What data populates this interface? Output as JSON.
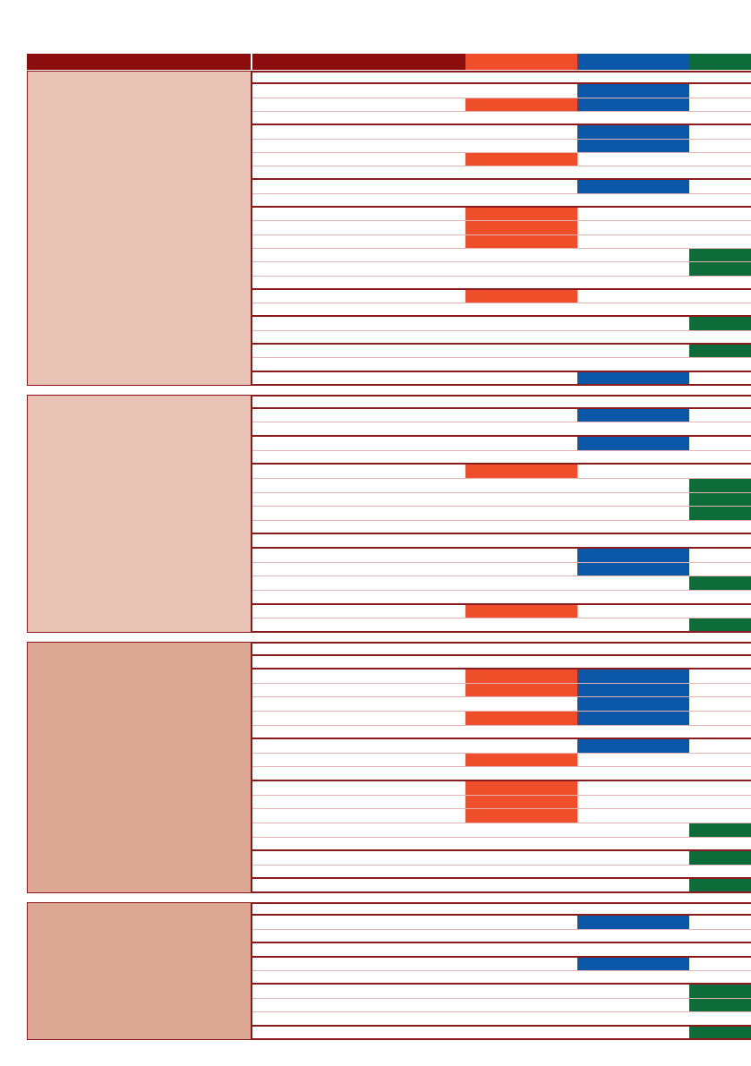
{
  "colors": {
    "dark_red": "#8b0d0d",
    "orange": "#ee4f2a",
    "blue": "#0b57a8",
    "green": "#0e6b3a",
    "group_light": "#e8c3b5",
    "group_dark": "#dca893",
    "rule": "#8b1a1a"
  },
  "header_cells": [
    {
      "name": "header-label-col",
      "color": "dark_red"
    },
    {
      "name": "header-desc-col",
      "color": "dark_red"
    },
    {
      "name": "header-orange-col",
      "color": "orange"
    },
    {
      "name": "header-blue-col",
      "color": "blue"
    },
    {
      "name": "header-green-col",
      "color": "green"
    }
  ],
  "groups": [
    {
      "shade": "group_light",
      "rows": [
        {
          "marks": []
        },
        {
          "marks": [
            "blue"
          ]
        },
        {
          "marks": [
            "orange",
            "blue"
          ]
        },
        {
          "marks": []
        },
        {
          "marks": [
            "blue"
          ]
        },
        {
          "marks": [
            "blue"
          ]
        },
        {
          "marks": [
            "orange"
          ]
        },
        {
          "marks": []
        },
        {
          "marks": [
            "blue"
          ]
        },
        {
          "marks": []
        },
        {
          "marks": [
            "orange"
          ]
        },
        {
          "marks": [
            "orange"
          ]
        },
        {
          "marks": [
            "orange"
          ]
        },
        {
          "marks": [
            "green"
          ]
        },
        {
          "marks": [
            "green"
          ]
        },
        {
          "marks": []
        },
        {
          "marks": [
            "orange"
          ]
        },
        {
          "marks": []
        },
        {
          "marks": [
            "green"
          ]
        },
        {
          "marks": []
        },
        {
          "marks": [
            "green"
          ]
        },
        {
          "marks": []
        },
        {
          "marks": [
            "blue"
          ]
        }
      ]
    },
    {
      "shade": "group_light",
      "rows": [
        {
          "marks": []
        },
        {
          "marks": [
            "blue"
          ]
        },
        {
          "marks": []
        },
        {
          "marks": [
            "blue"
          ]
        },
        {
          "marks": []
        },
        {
          "marks": [
            "orange"
          ]
        },
        {
          "marks": [
            "green"
          ]
        },
        {
          "marks": [
            "green"
          ]
        },
        {
          "marks": [
            "green"
          ]
        },
        {
          "marks": []
        },
        {
          "marks": []
        },
        {
          "marks": [
            "blue"
          ]
        },
        {
          "marks": [
            "blue"
          ]
        },
        {
          "marks": [
            "green"
          ]
        },
        {
          "marks": []
        },
        {
          "marks": [
            "orange"
          ]
        },
        {
          "marks": [
            "green"
          ]
        }
      ]
    },
    {
      "shade": "group_dark",
      "rows": [
        {
          "marks": []
        },
        {
          "marks": []
        },
        {
          "marks": [
            "orange",
            "blue"
          ]
        },
        {
          "marks": [
            "orange",
            "blue"
          ]
        },
        {
          "marks": [
            "blue"
          ]
        },
        {
          "marks": [
            "orange",
            "blue"
          ]
        },
        {
          "marks": []
        },
        {
          "marks": [
            "blue"
          ]
        },
        {
          "marks": [
            "orange"
          ]
        },
        {
          "marks": []
        },
        {
          "marks": [
            "orange"
          ]
        },
        {
          "marks": [
            "orange"
          ]
        },
        {
          "marks": [
            "orange"
          ]
        },
        {
          "marks": [
            "green"
          ]
        },
        {
          "marks": []
        },
        {
          "marks": [
            "green"
          ]
        },
        {
          "marks": []
        },
        {
          "marks": [
            "green"
          ]
        }
      ]
    },
    {
      "shade": "group_dark",
      "rows": [
        {
          "marks": []
        },
        {
          "marks": [
            "blue"
          ]
        },
        {
          "marks": []
        },
        {
          "marks": []
        },
        {
          "marks": [
            "blue"
          ]
        },
        {
          "marks": []
        },
        {
          "marks": [
            "green"
          ]
        },
        {
          "marks": [
            "green"
          ]
        },
        {
          "marks": []
        },
        {
          "marks": [
            "green"
          ]
        }
      ]
    }
  ]
}
